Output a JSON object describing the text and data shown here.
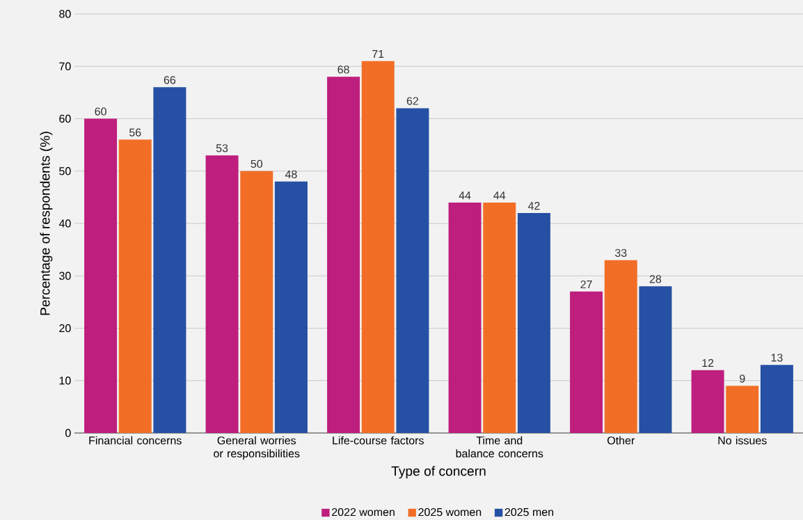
{
  "chart_data": {
    "type": "bar",
    "xlabel": "Type of concern",
    "ylabel": "Percentage of respondents (%)",
    "categories": [
      "Financial concerns",
      "General worries or responsibilities",
      "Life-course factors",
      "Time and balance concerns",
      "Other",
      "No issues"
    ],
    "series": [
      {
        "name": "2022 women",
        "color": "#be1e7d",
        "values": [
          60,
          53,
          68,
          44,
          27,
          12
        ]
      },
      {
        "name": "2025 women",
        "color": "#f26e26",
        "values": [
          56,
          50,
          71,
          44,
          33,
          9
        ]
      },
      {
        "name": "2025 men",
        "color": "#2550a3",
        "values": [
          66,
          48,
          62,
          42,
          28,
          13
        ]
      }
    ],
    "ylim": [
      0,
      80
    ],
    "yticks": [
      0,
      10,
      20,
      30,
      40,
      50,
      60,
      70,
      80
    ],
    "grid": "y",
    "legend": "bottom",
    "data_labels": true
  }
}
